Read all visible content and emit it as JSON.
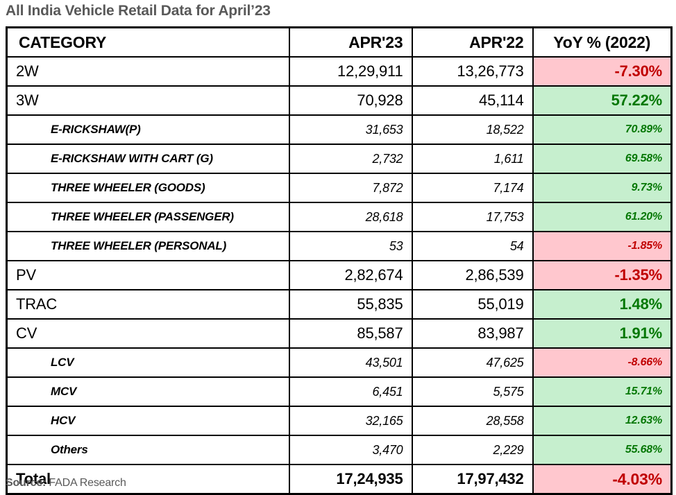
{
  "title": "All India Vehicle Retail Data for April’23",
  "footer": {
    "source_label": "Source:",
    "source_value": "FADA Research"
  },
  "colors": {
    "positive_bg": "#C6EFCE",
    "positive_text": "#067806",
    "negative_bg": "#FFC7CE",
    "negative_text": "#C00000",
    "title_text": "#595959",
    "border": "#000000"
  },
  "table": {
    "columns": [
      "CATEGORY",
      "APR'23",
      "APR'22",
      "YoY % (2022)"
    ]
  },
  "chart_data": {
    "type": "table",
    "title": "All India Vehicle Retail Data for April’23",
    "columns": [
      "CATEGORY",
      "APR'23",
      "APR'22",
      "YoY % (2022)"
    ],
    "rows": [
      {
        "category": "2W",
        "apr23": "12,29,911",
        "apr22": "13,26,773",
        "yoy": "-7.30%",
        "trend": "down",
        "style": "main"
      },
      {
        "category": "3W",
        "apr23": "70,928",
        "apr22": "45,114",
        "yoy": "57.22%",
        "trend": "up",
        "style": "main"
      },
      {
        "category": "E-RICKSHAW(P)",
        "apr23": "31,653",
        "apr22": "18,522",
        "yoy": "70.89%",
        "trend": "up",
        "style": "sub"
      },
      {
        "category": "E-RICKSHAW WITH CART (G)",
        "apr23": "2,732",
        "apr22": "1,611",
        "yoy": "69.58%",
        "trend": "up",
        "style": "sub"
      },
      {
        "category": "THREE WHEELER (GOODS)",
        "apr23": "7,872",
        "apr22": "7,174",
        "yoy": "9.73%",
        "trend": "up",
        "style": "sub"
      },
      {
        "category": "THREE WHEELER (PASSENGER)",
        "apr23": "28,618",
        "apr22": "17,753",
        "yoy": "61.20%",
        "trend": "up",
        "style": "sub"
      },
      {
        "category": "THREE WHEELER (PERSONAL)",
        "apr23": "53",
        "apr22": "54",
        "yoy": "-1.85%",
        "trend": "down",
        "style": "sub"
      },
      {
        "category": "PV",
        "apr23": "2,82,674",
        "apr22": "2,86,539",
        "yoy": "-1.35%",
        "trend": "down",
        "style": "main"
      },
      {
        "category": "TRAC",
        "apr23": "55,835",
        "apr22": "55,019",
        "yoy": "1.48%",
        "trend": "up",
        "style": "main"
      },
      {
        "category": "CV",
        "apr23": "85,587",
        "apr22": "83,987",
        "yoy": "1.91%",
        "trend": "up",
        "style": "main"
      },
      {
        "category": "LCV",
        "apr23": "43,501",
        "apr22": "47,625",
        "yoy": "-8.66%",
        "trend": "down",
        "style": "sub"
      },
      {
        "category": "MCV",
        "apr23": "6,451",
        "apr22": "5,575",
        "yoy": "15.71%",
        "trend": "up",
        "style": "sub"
      },
      {
        "category": "HCV",
        "apr23": "32,165",
        "apr22": "28,558",
        "yoy": "12.63%",
        "trend": "up",
        "style": "sub"
      },
      {
        "category": "Others",
        "apr23": "3,470",
        "apr22": "2,229",
        "yoy": "55.68%",
        "trend": "up",
        "style": "sub"
      },
      {
        "category": "Total",
        "apr23": "17,24,935",
        "apr22": "17,97,432",
        "yoy": "-4.03%",
        "trend": "down",
        "style": "total"
      }
    ]
  }
}
